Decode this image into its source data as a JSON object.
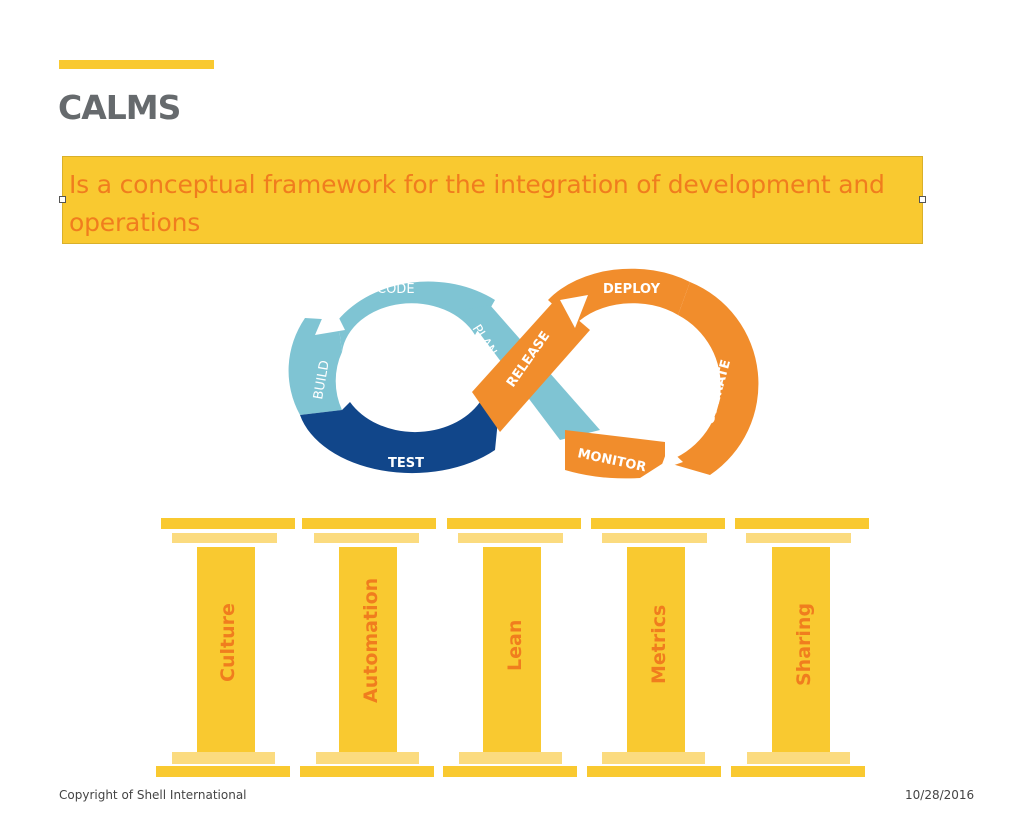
{
  "slide": {
    "title": "CALMS",
    "subtitle": "Is a conceptual framework for the integration of development and operations"
  },
  "infinity": {
    "stages": {
      "code": "CODE",
      "build": "BUILD",
      "test": "TEST",
      "plan": "PLAN",
      "release": "RELEASE",
      "deploy": "DEPLOY",
      "operate": "OPERATE",
      "monitor": "MONITOR"
    },
    "colors": {
      "dev_light": "#7fc4d3",
      "dev_dark": "#11468a",
      "ops": "#f18d2c"
    }
  },
  "pillars": [
    "Culture",
    "Automation",
    "Lean",
    "Metrics",
    "Sharing"
  ],
  "footer": {
    "copyright": "Copyright of Shell International",
    "date": "10/28/2016"
  },
  "colors": {
    "accent": "#f9c930",
    "text_orange": "#f07d1e",
    "title_gray": "#666a6d"
  }
}
